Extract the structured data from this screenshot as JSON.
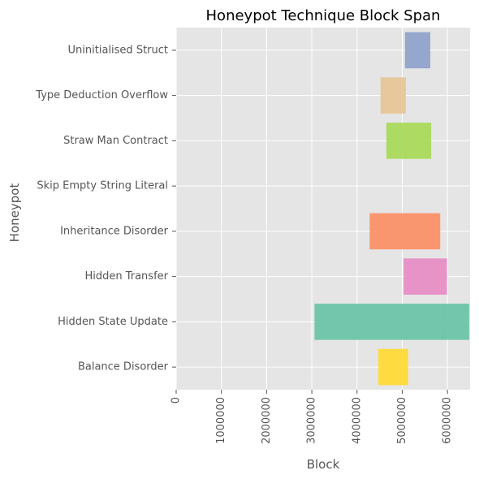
{
  "chart_data": {
    "type": "bar",
    "orientation": "horizontal",
    "title": "Honeypot Technique Block Span",
    "xlabel": "Block",
    "ylabel": "Honeypot",
    "xlim": [
      0,
      6500000
    ],
    "xticks": [
      0,
      1000000,
      2000000,
      3000000,
      4000000,
      5000000,
      6000000
    ],
    "xtick_labels": [
      "0",
      "1000000",
      "2000000",
      "3000000",
      "4000000",
      "5000000",
      "6000000"
    ],
    "grid": true,
    "categories": [
      "Balance Disorder",
      "Hidden State Update",
      "Hidden Transfer",
      "Inheritance Disorder",
      "Skip Empty String Literal",
      "Straw Man Contract",
      "Type Deduction Overflow",
      "Uninitialised Struct"
    ],
    "series": [
      {
        "spans": [
          {
            "start": 4470000,
            "end": 5130000,
            "color": "#ffd92f"
          },
          {
            "start": 3060000,
            "end": 6480000,
            "color": "#66c2a5"
          },
          {
            "start": 5030000,
            "end": 5990000,
            "color": "#e78ac3"
          },
          {
            "start": 4280000,
            "end": 5840000,
            "color": "#fc8d62"
          },
          null,
          {
            "start": 4650000,
            "end": 5640000,
            "color": "#a6d854"
          },
          {
            "start": 4520000,
            "end": 5080000,
            "color": "#e5c494"
          },
          {
            "start": 5060000,
            "end": 5620000,
            "color": "#8da0cb"
          }
        ]
      }
    ]
  }
}
